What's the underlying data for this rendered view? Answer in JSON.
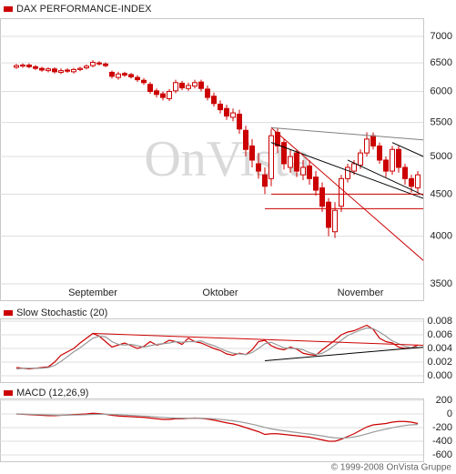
{
  "chart_data": [
    {
      "type": "candlestick",
      "title": "DAX PERFORMANCE-INDEX",
      "watermark": "OnVista",
      "categories": [
        null,
        null,
        null,
        null,
        null,
        null,
        null,
        null,
        null,
        null,
        null,
        null,
        "September",
        null,
        null,
        null,
        null,
        null,
        null,
        null,
        null,
        null,
        null,
        null,
        null,
        null,
        null,
        null,
        null,
        null,
        null,
        null,
        "Oktober",
        null,
        null,
        null,
        null,
        null,
        null,
        null,
        null,
        null,
        null,
        null,
        null,
        null,
        null,
        null,
        null,
        null,
        null,
        null,
        null,
        null,
        "November",
        null,
        null,
        null,
        null,
        null,
        null,
        null,
        null,
        null
      ],
      "open": [
        6420,
        6440,
        6460,
        6430,
        6400,
        6360,
        6390,
        6330,
        6370,
        6340,
        6380,
        6410,
        6450,
        6500,
        6480,
        6330,
        6240,
        6310,
        6290,
        6240,
        6190,
        6120,
        6010,
        5960,
        5880,
        6010,
        6140,
        6050,
        6090,
        6160,
        6040,
        5920,
        5790,
        5720,
        5580,
        5630,
        5380,
        5150,
        4900,
        4750,
        4700,
        5350,
        5200,
        4850,
        5050,
        4750,
        4870,
        4720,
        4580,
        4400,
        4050,
        4350,
        4700,
        4800,
        4880,
        5050,
        5300,
        5150,
        4950,
        4800,
        5100,
        4850,
        4700,
        4580
      ],
      "high": [
        6480,
        6490,
        6490,
        6460,
        6430,
        6420,
        6420,
        6400,
        6400,
        6410,
        6430,
        6470,
        6550,
        6530,
        6510,
        6360,
        6340,
        6340,
        6320,
        6280,
        6230,
        6160,
        6050,
        6000,
        6040,
        6200,
        6180,
        6150,
        6200,
        6200,
        6100,
        5980,
        5850,
        5780,
        5720,
        5700,
        5450,
        5250,
        5050,
        4850,
        5400,
        5420,
        5250,
        5100,
        5100,
        4950,
        4950,
        4800,
        4650,
        4450,
        4400,
        4750,
        4900,
        4950,
        5100,
        5350,
        5350,
        5200,
        5000,
        5150,
        5150,
        4900,
        4750,
        4800
      ],
      "low": [
        6390,
        6410,
        6400,
        6370,
        6340,
        6330,
        6310,
        6300,
        6320,
        6310,
        6350,
        6380,
        6420,
        6450,
        6420,
        6220,
        6200,
        6250,
        6220,
        6160,
        6110,
        5960,
        5900,
        5850,
        5840,
        5970,
        6020,
        6010,
        6050,
        6000,
        5850,
        5750,
        5640,
        5540,
        5520,
        5330,
        5000,
        4850,
        4700,
        4500,
        4600,
        5050,
        4820,
        4780,
        4720,
        4680,
        4620,
        4480,
        4280,
        4000,
        3980,
        4280,
        4650,
        4750,
        4830,
        5000,
        5100,
        4900,
        4720,
        4750,
        4780,
        4620,
        4520,
        4520
      ],
      "close": [
        6450,
        6460,
        6430,
        6400,
        6370,
        6390,
        6340,
        6360,
        6350,
        6380,
        6400,
        6440,
        6510,
        6480,
        6450,
        6260,
        6300,
        6280,
        6250,
        6200,
        6150,
        6000,
        5950,
        5900,
        6000,
        6150,
        6060,
        6100,
        6150,
        6050,
        5900,
        5800,
        5700,
        5600,
        5650,
        5400,
        5100,
        4950,
        4800,
        4600,
        5300,
        5150,
        4900,
        5000,
        4800,
        4850,
        4700,
        4550,
        4350,
        4100,
        4300,
        4700,
        4850,
        4900,
        5050,
        5250,
        5150,
        4950,
        4800,
        5100,
        4850,
        4700,
        4600,
        4750
      ],
      "color": "#cc0000",
      "ylim": [
        3500,
        7000
      ],
      "yticks": [
        3500,
        4000,
        4500,
        5000,
        5500,
        6000,
        6500,
        7000
      ],
      "log_scale": true,
      "grid": true,
      "trend_lines": [
        {
          "color": "#808080",
          "x": [
            40,
            69
          ],
          "values": [
            5420,
            5200
          ]
        },
        {
          "color": "#000000",
          "x": [
            40,
            69
          ],
          "values": [
            5200,
            4300
          ]
        },
        {
          "color": "#000000",
          "x": [
            52,
            69
          ],
          "values": [
            4950,
            4300
          ]
        },
        {
          "color": "#000000",
          "x": [
            59,
            69
          ],
          "values": [
            5200,
            4800
          ]
        },
        {
          "color": "#cc0000",
          "x": [
            40,
            69
          ],
          "values": [
            5420,
            3450
          ]
        },
        {
          "color": "#cc0000",
          "x": [
            40,
            69
          ],
          "values": [
            4500,
            4500
          ]
        },
        {
          "color": "#cc0000",
          "x": [
            39,
            69
          ],
          "values": [
            4320,
            4320
          ]
        }
      ]
    },
    {
      "type": "line",
      "title": "Slow Stochastic (20)",
      "series": [
        {
          "color": "#cc0000",
          "values": [
            0.0012,
            0.0011,
            0.001,
            0.0011,
            0.0012,
            0.0013,
            0.002,
            0.003,
            0.0035,
            0.004,
            0.0048,
            0.0055,
            0.0062,
            0.0058,
            0.005,
            0.0042,
            0.0045,
            0.0048,
            0.0044,
            0.004,
            0.0043,
            0.005,
            0.0045,
            0.0047,
            0.0052,
            0.005,
            0.0046,
            0.0055,
            0.005,
            0.0048,
            0.0044,
            0.004,
            0.0037,
            0.0032,
            0.003,
            0.0033,
            0.0031,
            0.0038,
            0.005,
            0.0052,
            0.0044,
            0.004,
            0.0038,
            0.0042,
            0.0039,
            0.0033,
            0.0031,
            0.003,
            0.0038,
            0.0045,
            0.0052,
            0.006,
            0.0064,
            0.0066,
            0.007,
            0.0074,
            0.0068,
            0.0055,
            0.005,
            0.0048,
            0.0042,
            0.004,
            0.0041,
            0.0045
          ]
        },
        {
          "color": "#999999",
          "values": [
            0.001,
            0.0011,
            0.0011,
            0.0011,
            0.0011,
            0.0012,
            0.0015,
            0.0021,
            0.0028,
            0.0035,
            0.0041,
            0.0048,
            0.0055,
            0.0058,
            0.0057,
            0.005,
            0.0046,
            0.0045,
            0.0046,
            0.0044,
            0.0042,
            0.0044,
            0.0046,
            0.0047,
            0.0048,
            0.005,
            0.0049,
            0.005,
            0.005,
            0.0051,
            0.0047,
            0.0044,
            0.004,
            0.0036,
            0.0033,
            0.0032,
            0.0031,
            0.0034,
            0.004,
            0.0047,
            0.0049,
            0.0045,
            0.0041,
            0.004,
            0.004,
            0.0038,
            0.0034,
            0.0031,
            0.0033,
            0.0038,
            0.0045,
            0.0052,
            0.0059,
            0.0063,
            0.0067,
            0.007,
            0.0069,
            0.0064,
            0.0058,
            0.0051,
            0.0047,
            0.0043,
            0.0041,
            0.0042
          ]
        }
      ],
      "ylim": [
        0,
        0.008
      ],
      "yticks": [
        {
          "value": 0,
          "label": "0.000"
        },
        {
          "value": 0.002,
          "label": "0.002"
        },
        {
          "value": 0.004,
          "label": "0.004"
        },
        {
          "value": 0.006,
          "label": "0.006"
        },
        {
          "value": 0.008,
          "label": "0.008"
        }
      ],
      "grid": true,
      "trend_lines": [
        {
          "color": "#cc0000",
          "x": [
            12,
            69
          ],
          "values": [
            0.0062,
            0.0043
          ]
        },
        {
          "color": "#000000",
          "x": [
            39,
            69
          ],
          "values": [
            0.0022,
            0.0046
          ]
        }
      ]
    },
    {
      "type": "line",
      "title": "MACD (12,26,9)",
      "series": [
        {
          "color": "#cc0000",
          "values": [
            0,
            -5,
            -10,
            -15,
            -20,
            -25,
            -25,
            -20,
            -15,
            -10,
            -5,
            0,
            10,
            5,
            -5,
            -20,
            -30,
            -35,
            -40,
            -45,
            -50,
            -60,
            -70,
            -80,
            -80,
            -70,
            -70,
            -65,
            -60,
            -65,
            -75,
            -90,
            -110,
            -130,
            -145,
            -170,
            -200,
            -230,
            -260,
            -300,
            -290,
            -290,
            -300,
            -310,
            -320,
            -330,
            -340,
            -360,
            -380,
            -400,
            -400,
            -370,
            -330,
            -290,
            -240,
            -190,
            -160,
            -150,
            -140,
            -120,
            -110,
            -110,
            -120,
            -140
          ]
        },
        {
          "color": "#999999",
          "values": [
            0,
            -2,
            -5,
            -8,
            -11,
            -14,
            -17,
            -18,
            -17,
            -16,
            -14,
            -11,
            -7,
            -5,
            -5,
            -8,
            -12,
            -17,
            -21,
            -26,
            -31,
            -37,
            -44,
            -51,
            -57,
            -60,
            -62,
            -63,
            -63,
            -63,
            -66,
            -71,
            -79,
            -89,
            -100,
            -114,
            -131,
            -151,
            -173,
            -198,
            -218,
            -233,
            -247,
            -260,
            -272,
            -284,
            -295,
            -308,
            -322,
            -338,
            -350,
            -354,
            -349,
            -337,
            -318,
            -292,
            -266,
            -243,
            -222,
            -202,
            -184,
            -169,
            -159,
            -155
          ]
        }
      ],
      "ylim": [
        -600,
        200
      ],
      "yticks": [
        -600,
        -400,
        -200,
        0,
        200
      ],
      "grid": true
    }
  ],
  "footer": "© 1999-2008 OnVista Gruppe"
}
